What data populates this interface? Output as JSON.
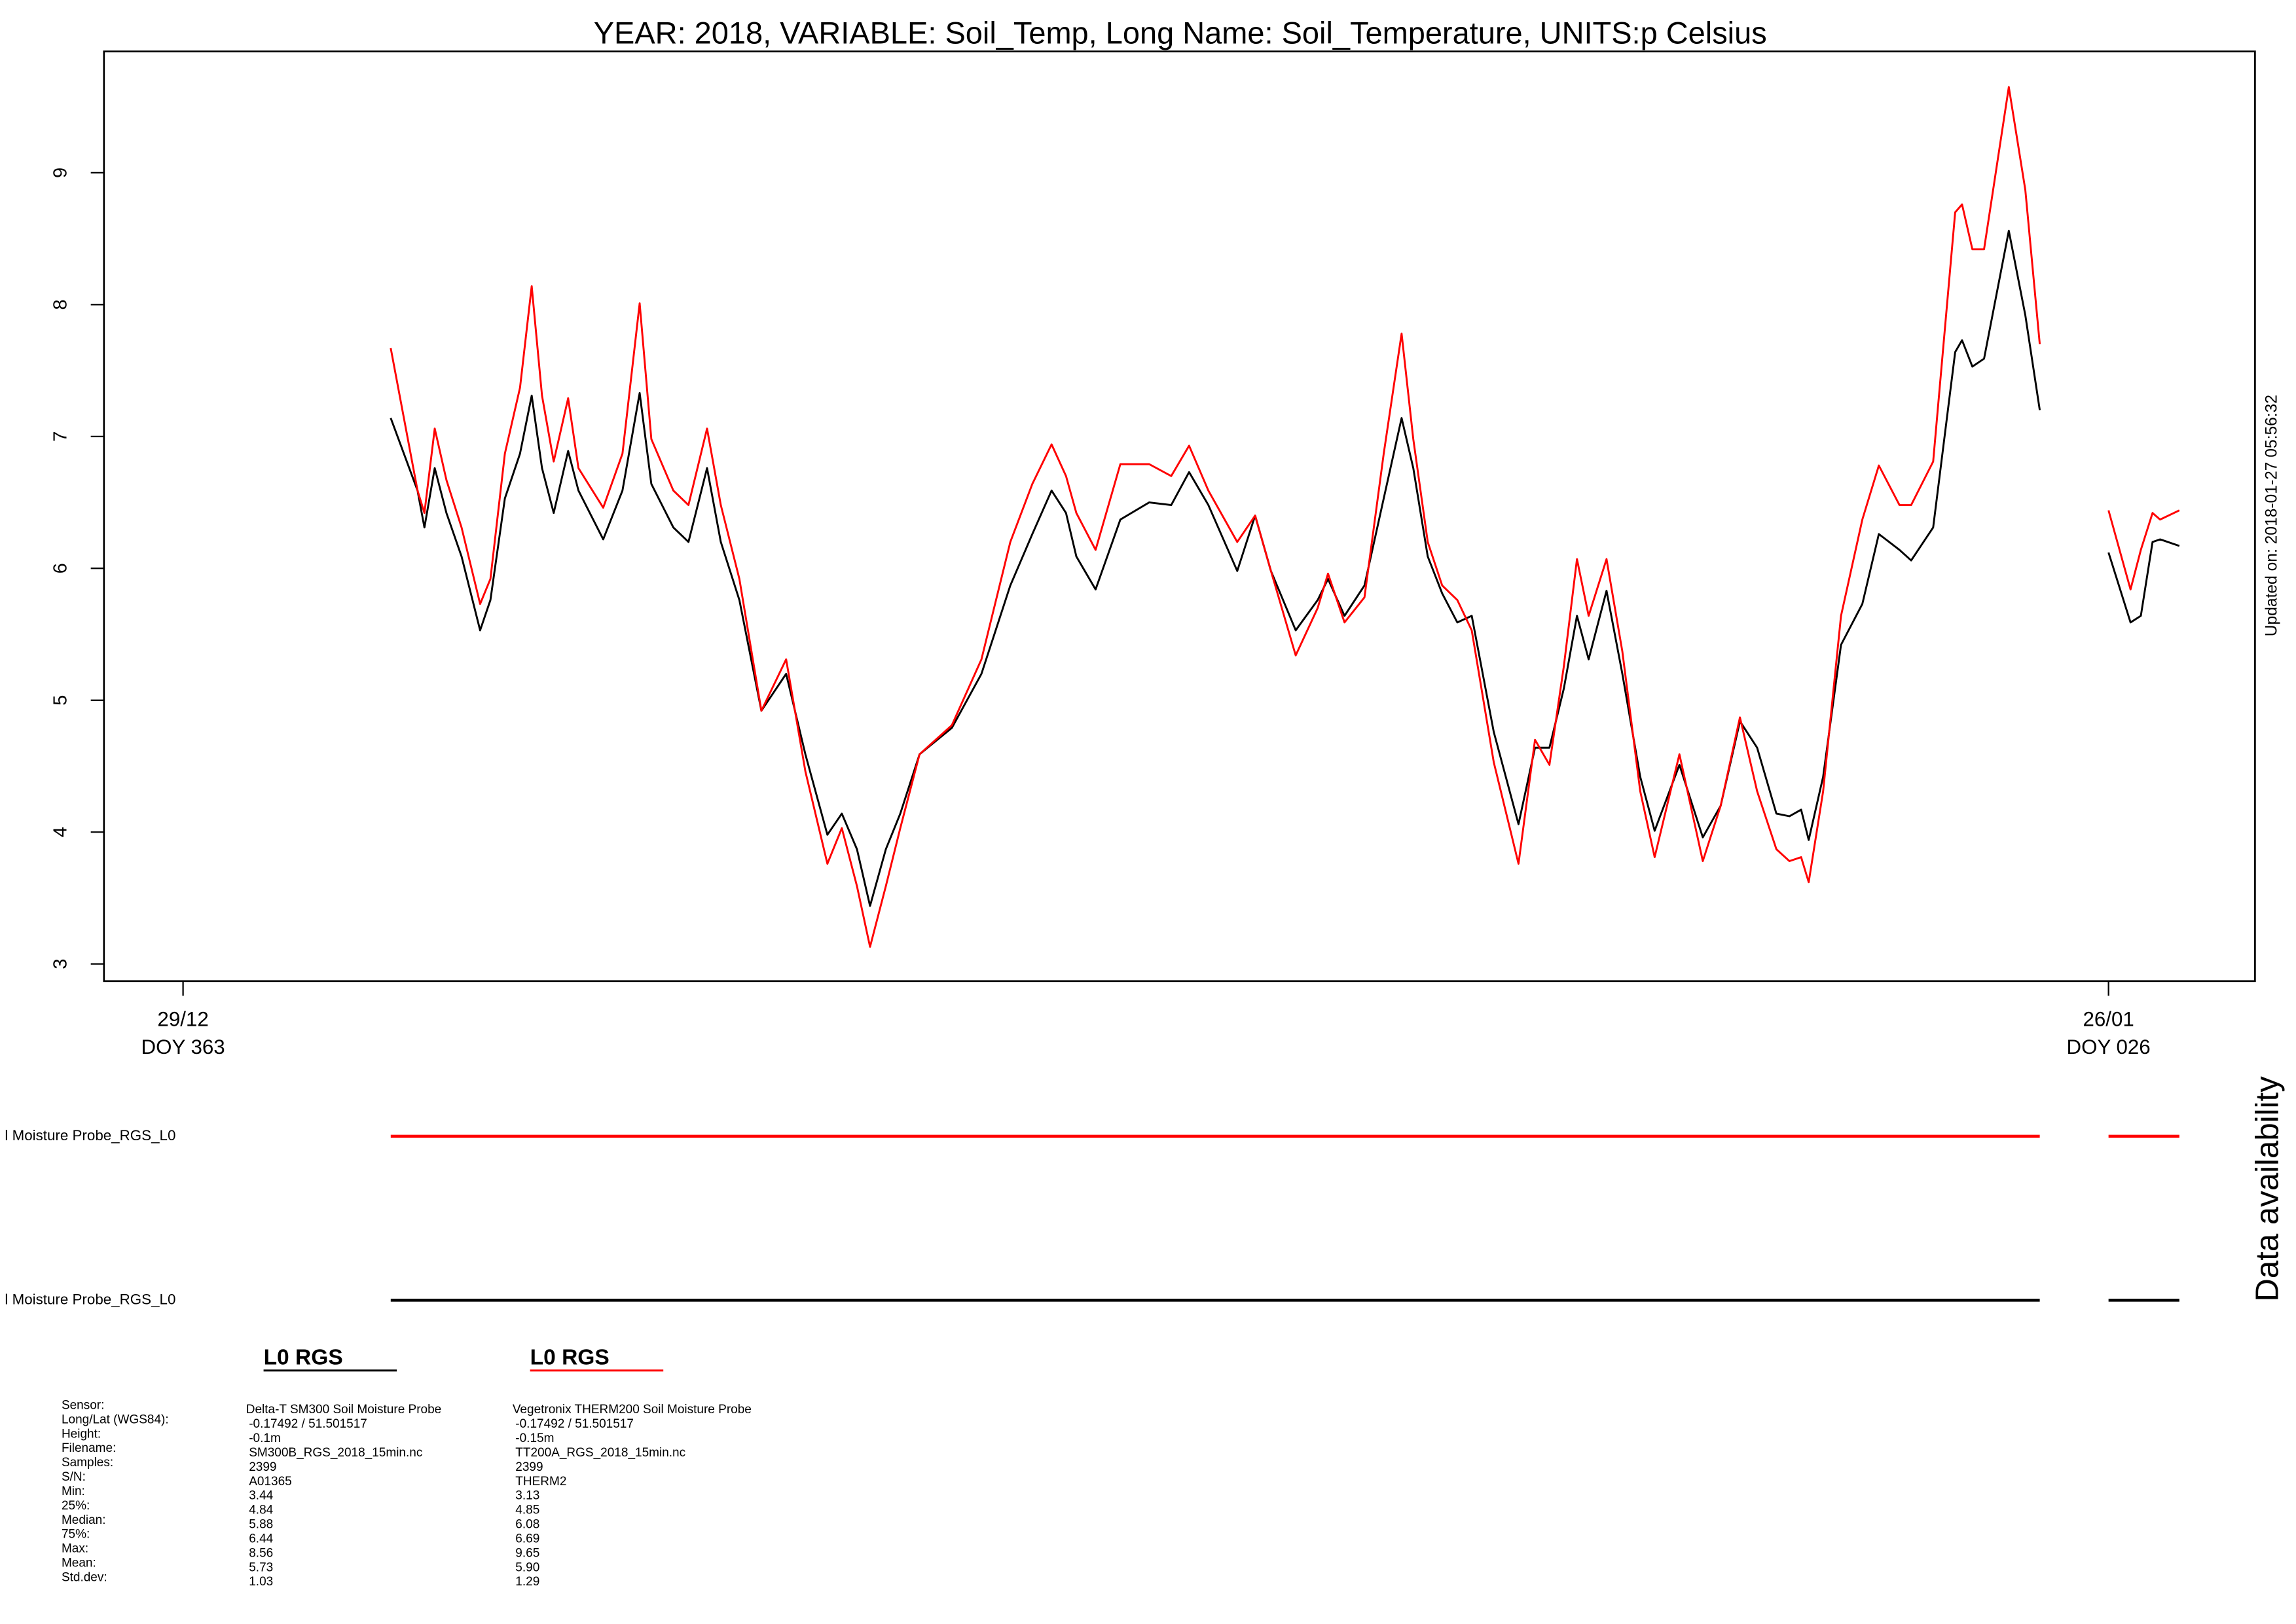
{
  "chart_data": {
    "type": "line",
    "title": "YEAR: 2018, VARIABLE: Soil_Temp, Long Name: Soil_Temperature, UNITS:p Celsius",
    "updated": "Updated on: 2018-01-27 05:56:32",
    "x": [
      3.02,
      3.41,
      3.51,
      3.66,
      3.83,
      4.05,
      4.32,
      4.47,
      4.68,
      4.9,
      5.07,
      5.22,
      5.39,
      5.6,
      5.75,
      6.11,
      6.39,
      6.64,
      6.81,
      7.13,
      7.35,
      7.62,
      7.82,
      8.09,
      8.41,
      8.77,
      9.05,
      9.37,
      9.58,
      9.8,
      9.99,
      10.22,
      10.43,
      10.71,
      11.18,
      11.61,
      12.03,
      12.35,
      12.63,
      12.84,
      12.99,
      13.27,
      13.63,
      14.05,
      14.37,
      14.63,
      14.91,
      15.33,
      15.59,
      15.82,
      16.18,
      16.5,
      16.65,
      16.89,
      17.18,
      17.46,
      17.72,
      17.89,
      18.1,
      18.31,
      18.53,
      18.74,
      19.06,
      19.42,
      19.66,
      19.87,
      20.08,
      20.27,
      20.44,
      20.7,
      20.93,
      21.19,
      21.4,
      21.76,
      22.1,
      22.36,
      22.64,
      22.89,
      23.17,
      23.36,
      23.53,
      23.64,
      23.85,
      24.11,
      24.42,
      24.66,
      24.96,
      25.13,
      25.45,
      25.77,
      25.87,
      26.02,
      26.19,
      26.55,
      26.79,
      27.0,
      27.5,
      28.0,
      28.32,
      28.47,
      28.64,
      28.75,
      29.03
    ],
    "xlim": [
      -1.15,
      30.13
    ],
    "xticks": [
      {
        "value": 0,
        "label": "29/12",
        "doy": "DOY 363"
      },
      {
        "value": 28,
        "label": "26/01",
        "doy": "DOY 026"
      }
    ],
    "ylim": [
      2.87,
      9.92
    ],
    "yticks": [
      3,
      4,
      5,
      6,
      7,
      8,
      9
    ],
    "series": [
      {
        "name": "L0 RGS",
        "color": "#000000",
        "values": [
          7.14,
          6.59,
          6.31,
          6.76,
          6.42,
          6.09,
          5.53,
          5.76,
          6.53,
          6.87,
          7.31,
          6.76,
          6.42,
          6.89,
          6.59,
          6.22,
          6.59,
          7.33,
          6.64,
          6.31,
          6.2,
          6.76,
          6.2,
          5.76,
          4.92,
          5.2,
          4.59,
          3.98,
          4.14,
          3.87,
          3.44,
          3.87,
          4.14,
          4.59,
          4.79,
          5.2,
          5.87,
          6.26,
          6.59,
          6.42,
          6.09,
          5.84,
          6.37,
          6.5,
          6.48,
          6.73,
          6.48,
          5.98,
          6.4,
          5.98,
          5.53,
          5.76,
          5.92,
          5.64,
          5.87,
          6.53,
          7.14,
          6.76,
          6.09,
          5.81,
          5.59,
          5.64,
          4.76,
          4.06,
          4.64,
          4.64,
          5.09,
          5.64,
          5.31,
          5.83,
          5.2,
          4.42,
          4.01,
          4.51,
          3.96,
          4.2,
          4.84,
          4.64,
          4.14,
          4.12,
          4.17,
          3.94,
          4.42,
          5.42,
          5.73,
          6.26,
          6.14,
          6.06,
          6.31,
          7.64,
          7.73,
          7.53,
          7.59,
          8.56,
          7.92,
          7.2,
          null,
          6.12,
          5.59,
          5.64,
          6.2,
          6.22,
          6.17
        ]
      },
      {
        "name": "L0 RGS",
        "color": "#ff0000",
        "values": [
          7.67,
          6.59,
          6.42,
          7.06,
          6.67,
          6.31,
          5.73,
          5.92,
          6.87,
          7.37,
          8.14,
          7.31,
          6.81,
          7.29,
          6.76,
          6.46,
          6.87,
          8.01,
          6.98,
          6.59,
          6.48,
          7.06,
          6.48,
          5.92,
          4.92,
          5.31,
          4.46,
          3.76,
          4.03,
          3.59,
          3.13,
          3.59,
          4.03,
          4.59,
          4.81,
          5.31,
          6.2,
          6.64,
          6.94,
          6.7,
          6.42,
          6.14,
          6.79,
          6.79,
          6.7,
          6.93,
          6.59,
          6.2,
          6.4,
          5.98,
          5.34,
          5.7,
          5.96,
          5.59,
          5.78,
          6.87,
          7.78,
          6.98,
          6.2,
          5.87,
          5.76,
          5.53,
          4.53,
          3.76,
          4.7,
          4.51,
          5.26,
          6.07,
          5.64,
          6.07,
          5.37,
          4.31,
          3.81,
          4.59,
          3.78,
          4.2,
          4.87,
          4.31,
          3.87,
          3.78,
          3.81,
          3.62,
          4.31,
          5.64,
          6.37,
          6.78,
          6.48,
          6.48,
          6.81,
          8.7,
          8.76,
          8.42,
          8.42,
          9.65,
          8.87,
          7.7,
          null,
          6.44,
          5.84,
          6.14,
          6.42,
          6.37,
          6.44
        ]
      }
    ]
  },
  "availability": {
    "title": "Data availability",
    "labels": [
      "l Moisture Probe_RGS_L0",
      "l Moisture Probe_RGS_L0"
    ]
  },
  "stats": {
    "labels": [
      "Sensor:",
      "Long/Lat (WGS84):",
      "Height:",
      "Filename:",
      "Samples:",
      "S/N:",
      "Min:",
      "25%:",
      "Median:",
      "75%:",
      "Max:",
      "Mean:",
      "Std.dev:"
    ],
    "columns": [
      [
        "Delta-T SM300 Soil Moisture Probe",
        "-0.17492 / 51.501517",
        "-0.1m",
        "SM300B_RGS_2018_15min.nc",
        "2399",
        "A01365",
        "3.44",
        "4.84",
        "5.88",
        "6.44",
        "8.56",
        "5.73",
        "1.03"
      ],
      [
        "Vegetronix THERM200 Soil Moisture Probe",
        "-0.17492 / 51.501517",
        "-0.15m",
        "TT200A_RGS_2018_15min.nc",
        "2399",
        "THERM2",
        "3.13",
        "4.85",
        "6.08",
        "6.69",
        "9.65",
        "5.90",
        "1.29"
      ]
    ]
  }
}
